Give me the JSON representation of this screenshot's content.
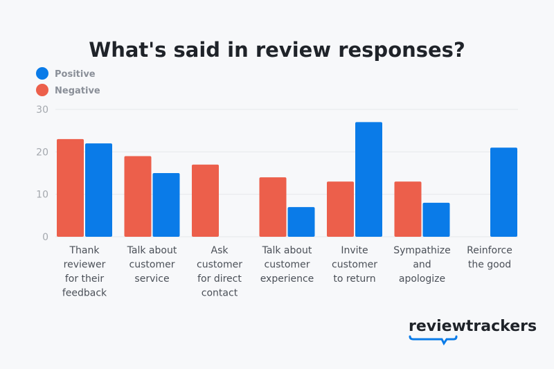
{
  "chart_data": {
    "type": "bar",
    "title": "What's said in review responses?",
    "categories": [
      [
        "Thank",
        "reviewer",
        "for their",
        "feedback"
      ],
      [
        "Talk about",
        "customer",
        "service"
      ],
      [
        "Ask",
        "customer",
        "for direct",
        "contact"
      ],
      [
        "Talk about",
        "customer",
        "experience"
      ],
      [
        "Invite",
        "customer",
        "to return"
      ],
      [
        "Sympathize",
        "and",
        "apologize"
      ],
      [
        "Reinforce",
        "the good"
      ]
    ],
    "series": [
      {
        "name": "Positive",
        "color": "#0a7be8",
        "values": [
          22,
          15,
          0,
          7,
          27,
          8,
          21
        ]
      },
      {
        "name": "Negative",
        "color": "#ec5f4b",
        "values": [
          23,
          19,
          17,
          14,
          13,
          13,
          0
        ]
      }
    ],
    "ylim": [
      0,
      30
    ],
    "yticks": [
      0,
      10,
      20,
      30
    ],
    "grid": true,
    "legend": "top-left",
    "xlabel": "",
    "ylabel": ""
  },
  "logo": {
    "text": "reviewtrackers",
    "color": "#0a7be8"
  }
}
